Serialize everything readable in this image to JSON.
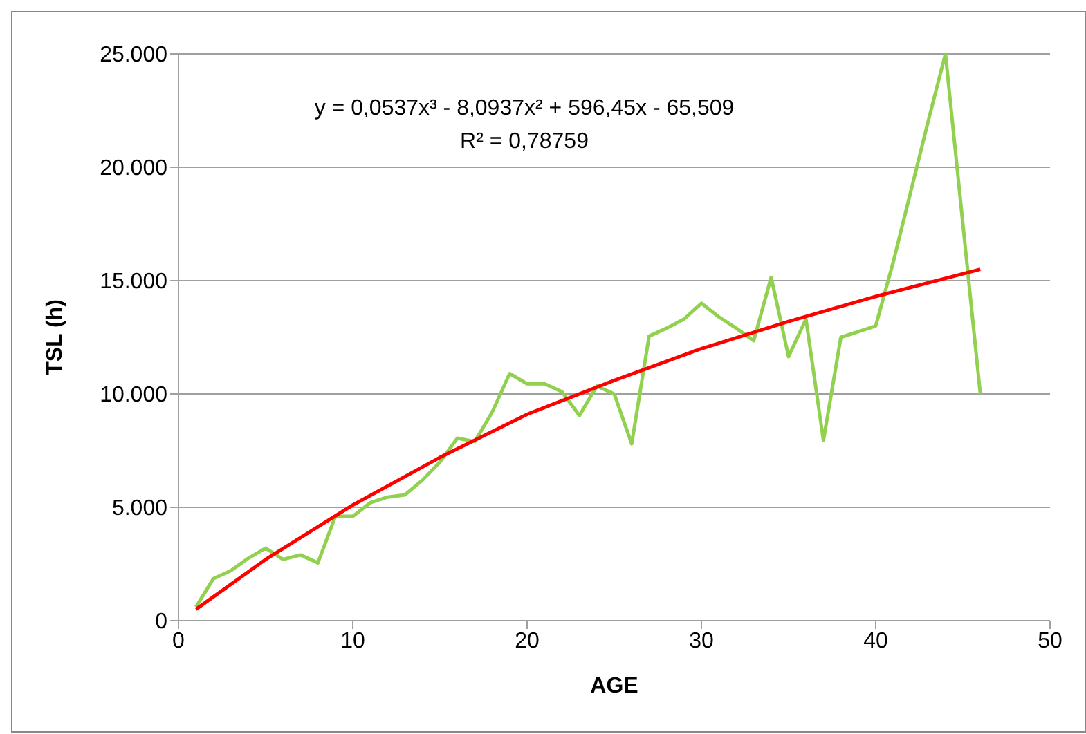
{
  "chart_data": {
    "type": "line",
    "xlabel": "AGE",
    "ylabel": "TSL (h)",
    "xlim": [
      0,
      50
    ],
    "xticks": [
      0,
      10,
      20,
      30,
      40,
      50
    ],
    "ylim": [
      0,
      25000
    ],
    "yticks": [
      {
        "value": 0,
        "label": "0"
      },
      {
        "value": 5000,
        "label": "5.000"
      },
      {
        "value": 10000,
        "label": "10.000"
      },
      {
        "value": 15000,
        "label": "15.000"
      },
      {
        "value": 20000,
        "label": "20.000"
      },
      {
        "value": 25000,
        "label": "25.000"
      }
    ],
    "grid": "y",
    "marker": "none",
    "line_style": "solid",
    "annotations": [
      "y = 0,0537x³ - 8,0937x² + 596,45x - 65,509",
      "R² = 0,78759"
    ],
    "series": [
      {
        "color": "#92d050",
        "x": [
          1,
          2,
          3,
          4,
          5,
          6,
          7,
          8,
          9,
          10,
          11,
          12,
          13,
          14,
          15,
          16,
          17,
          18,
          19,
          20,
          21,
          22,
          23,
          24,
          25,
          26,
          27,
          28,
          29,
          30,
          31,
          32,
          33,
          34,
          35,
          36,
          37,
          38,
          39,
          40,
          41,
          42,
          43,
          44,
          45,
          46
        ],
        "values": [
          600,
          1850,
          2200,
          2750,
          3200,
          2700,
          2900,
          2550,
          4600,
          4600,
          5200,
          5450,
          5550,
          6200,
          7000,
          8050,
          7900,
          9200,
          10900,
          10450,
          10450,
          10100,
          9050,
          10350,
          10000,
          7800,
          12550,
          12900,
          13300,
          14000,
          13400,
          12900,
          12350,
          15150,
          11650,
          13300,
          7950,
          12500,
          12750,
          13000,
          15800,
          18900,
          22000,
          25000,
          17500,
          10000
        ]
      },
      {
        "type": "line",
        "color": "#ff0000",
        "x": [
          1,
          5,
          10,
          15,
          20,
          25,
          30,
          35,
          40,
          46
        ],
        "values": [
          500,
          2700,
          5100,
          7200,
          9100,
          10600,
          12000,
          13200,
          14300,
          15500
        ]
      }
    ]
  }
}
